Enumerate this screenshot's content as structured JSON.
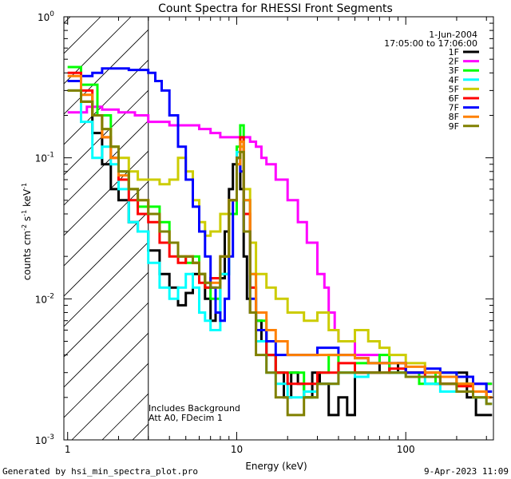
{
  "chart_data": {
    "type": "line",
    "title": "Count Spectra for RHESSI Front Segments",
    "xlabel": "Energy (keV)",
    "ylabel_main": "counts cm",
    "ylabel_exp1": "-2",
    "ylabel_mid": " s",
    "ylabel_exp2": "-1",
    "ylabel_end": " keV",
    "ylabel_exp3": "-1",
    "xscale": "log",
    "yscale": "log",
    "xlim": [
      0.95,
      330
    ],
    "ylim": [
      0.001,
      1.0
    ],
    "xticks": [
      {
        "v": 1,
        "label": "1"
      },
      {
        "v": 10,
        "label": "10"
      },
      {
        "v": 100,
        "label": "100"
      }
    ],
    "yticks": [
      {
        "v": 1.0,
        "base": "10",
        "exp": "0"
      },
      {
        "v": 0.1,
        "base": "10",
        "exp": "-1"
      },
      {
        "v": 0.01,
        "base": "10",
        "exp": "-2"
      },
      {
        "v": 0.001,
        "base": "10",
        "exp": "-3"
      }
    ],
    "attenuator_shading_below_kev": 3.0,
    "date": "1-Jun-2004",
    "time_range": "17:05:00 to 17:06:00",
    "annotations": [
      "Includes Background",
      "Att A0, FDecim 1"
    ],
    "series": [
      {
        "name": "1F",
        "color": "#000000",
        "x": [
          1.0,
          1.2,
          1.4,
          1.6,
          1.8,
          2.0,
          2.3,
          2.6,
          3.0,
          3.5,
          4.0,
          4.5,
          5.0,
          5.5,
          6.0,
          6.5,
          7.0,
          7.5,
          8.0,
          8.5,
          9.0,
          9.5,
          10.0,
          10.5,
          11.0,
          11.5,
          12.0,
          13,
          14,
          15,
          17,
          19,
          21,
          23,
          25,
          28,
          31,
          35,
          40,
          45,
          50,
          60,
          70,
          80,
          90,
          100,
          120,
          150,
          180,
          200,
          230,
          260,
          300
        ],
        "y": [
          0.35,
          0.25,
          0.15,
          0.09,
          0.06,
          0.05,
          0.035,
          0.03,
          0.022,
          0.015,
          0.012,
          0.009,
          0.011,
          0.015,
          0.015,
          0.01,
          0.007,
          0.008,
          0.014,
          0.03,
          0.06,
          0.09,
          0.1,
          0.06,
          0.02,
          0.01,
          0.008,
          0.007,
          0.005,
          0.004,
          0.003,
          0.002,
          0.003,
          0.0025,
          0.002,
          0.003,
          0.0025,
          0.0015,
          0.002,
          0.0015,
          0.003,
          0.003,
          0.0035,
          0.003,
          0.0035,
          0.003,
          0.003,
          0.0025,
          0.0025,
          0.003,
          0.002,
          0.0015,
          0.0015
        ]
      },
      {
        "name": "2F",
        "color": "#ff00ff",
        "x": [
          1.0,
          1.3,
          1.6,
          2.0,
          2.5,
          3.0,
          3.5,
          4.0,
          5.0,
          6.0,
          7.0,
          8.0,
          9.0,
          10.0,
          11.0,
          12.0,
          13.0,
          14.0,
          15.0,
          17.0,
          20.0,
          23.0,
          26.0,
          30.0,
          33.0,
          35.0,
          38.0,
          40.0,
          45.0,
          50.0,
          60.0,
          70.0,
          80.0,
          100.0,
          130.0,
          160.0,
          200.0,
          250.0,
          300.0
        ],
        "y": [
          0.21,
          0.23,
          0.22,
          0.21,
          0.2,
          0.18,
          0.18,
          0.17,
          0.17,
          0.16,
          0.15,
          0.14,
          0.14,
          0.14,
          0.14,
          0.13,
          0.12,
          0.1,
          0.09,
          0.07,
          0.05,
          0.035,
          0.025,
          0.015,
          0.012,
          0.008,
          0.006,
          0.005,
          0.005,
          0.004,
          0.004,
          0.0035,
          0.003,
          0.003,
          0.003,
          0.0028,
          0.0028,
          0.0025,
          0.0025
        ]
      },
      {
        "name": "3F",
        "color": "#00ff00",
        "x": [
          1.0,
          1.2,
          1.5,
          1.8,
          2.0,
          2.3,
          2.6,
          3.0,
          3.5,
          4.0,
          4.5,
          5.0,
          5.5,
          6.0,
          6.5,
          7.0,
          8.0,
          9.0,
          10.0,
          10.5,
          11.0,
          12.0,
          13,
          15,
          17,
          20,
          25,
          30,
          35,
          40,
          50,
          60,
          70,
          80,
          100,
          120,
          150,
          200,
          250,
          300
        ],
        "y": [
          0.44,
          0.33,
          0.2,
          0.12,
          0.08,
          0.06,
          0.045,
          0.045,
          0.035,
          0.025,
          0.02,
          0.018,
          0.02,
          0.015,
          0.012,
          0.01,
          0.015,
          0.04,
          0.12,
          0.17,
          0.05,
          0.015,
          0.007,
          0.004,
          0.003,
          0.003,
          0.002,
          0.003,
          0.004,
          0.003,
          0.0035,
          0.0035,
          0.004,
          0.003,
          0.003,
          0.0025,
          0.003,
          0.0025,
          0.002,
          0.0025
        ]
      },
      {
        "name": "4F",
        "color": "#00ffff",
        "x": [
          1.0,
          1.2,
          1.4,
          1.6,
          1.8,
          2.0,
          2.3,
          2.6,
          3.0,
          3.5,
          4.0,
          4.5,
          5.0,
          5.5,
          6.0,
          6.5,
          7.0,
          8.0,
          9.0,
          10.0,
          10.5,
          11.0,
          12.0,
          13,
          15,
          17,
          20,
          25,
          30,
          40,
          50,
          60,
          80,
          100,
          130,
          160,
          200,
          250,
          300
        ],
        "y": [
          0.3,
          0.18,
          0.1,
          0.12,
          0.09,
          0.06,
          0.035,
          0.03,
          0.018,
          0.012,
          0.01,
          0.012,
          0.015,
          0.012,
          0.008,
          0.007,
          0.006,
          0.015,
          0.05,
          0.11,
          0.13,
          0.05,
          0.012,
          0.005,
          0.003,
          0.0025,
          0.002,
          0.0022,
          0.0025,
          0.003,
          0.0028,
          0.003,
          0.003,
          0.0028,
          0.0025,
          0.0022,
          0.0022,
          0.002,
          0.0018
        ]
      },
      {
        "name": "5F",
        "color": "#cccc00",
        "x": [
          1.0,
          1.2,
          1.4,
          1.6,
          1.8,
          2.0,
          2.3,
          2.6,
          3.0,
          3.5,
          4.0,
          4.5,
          5.0,
          5.5,
          6.0,
          6.5,
          7.0,
          8.0,
          9.0,
          10.0,
          10.5,
          11.0,
          12.0,
          13,
          15,
          17,
          20,
          25,
          30,
          35,
          40,
          50,
          60,
          70,
          80,
          100,
          130,
          160,
          200,
          250,
          300
        ],
        "y": [
          0.3,
          0.25,
          0.2,
          0.16,
          0.12,
          0.1,
          0.08,
          0.07,
          0.07,
          0.065,
          0.07,
          0.1,
          0.08,
          0.05,
          0.035,
          0.028,
          0.03,
          0.04,
          0.05,
          0.09,
          0.12,
          0.06,
          0.025,
          0.015,
          0.012,
          0.01,
          0.008,
          0.007,
          0.008,
          0.006,
          0.005,
          0.006,
          0.005,
          0.0045,
          0.004,
          0.0035,
          0.003,
          0.003,
          0.0025,
          0.0022,
          0.002
        ]
      },
      {
        "name": "6F",
        "color": "#ff0000",
        "x": [
          1.0,
          1.2,
          1.4,
          1.6,
          1.8,
          2.0,
          2.3,
          2.6,
          3.0,
          3.5,
          4.0,
          4.5,
          5.0,
          5.5,
          6.0,
          6.5,
          7.0,
          8.0,
          9.0,
          10.0,
          10.5,
          11.0,
          12.0,
          13,
          15,
          17,
          20,
          25,
          30,
          40,
          50,
          60,
          80,
          100,
          130,
          160,
          200,
          250,
          300
        ],
        "y": [
          0.4,
          0.3,
          0.2,
          0.14,
          0.1,
          0.07,
          0.05,
          0.04,
          0.035,
          0.025,
          0.02,
          0.018,
          0.02,
          0.018,
          0.013,
          0.012,
          0.014,
          0.02,
          0.05,
          0.1,
          0.14,
          0.04,
          0.012,
          0.006,
          0.004,
          0.003,
          0.0025,
          0.0025,
          0.003,
          0.0035,
          0.003,
          0.003,
          0.0032,
          0.003,
          0.0028,
          0.0025,
          0.0024,
          0.0022,
          0.002
        ]
      },
      {
        "name": "7F",
        "color": "#0000ff",
        "x": [
          1.0,
          1.2,
          1.4,
          1.6,
          1.8,
          2.0,
          2.3,
          2.6,
          3.0,
          3.3,
          3.6,
          4.0,
          4.5,
          5.0,
          5.5,
          6.0,
          6.5,
          7.0,
          7.5,
          8.0,
          8.5,
          9.0,
          9.5,
          10.0,
          10.5,
          11.0,
          12.0,
          13,
          15,
          17,
          20,
          25,
          30,
          40,
          50,
          60,
          80,
          100,
          130,
          160,
          200,
          250,
          300
        ],
        "y": [
          0.35,
          0.38,
          0.4,
          0.43,
          0.43,
          0.43,
          0.42,
          0.42,
          0.4,
          0.35,
          0.3,
          0.2,
          0.12,
          0.07,
          0.045,
          0.03,
          0.02,
          0.012,
          0.008,
          0.007,
          0.01,
          0.02,
          0.05,
          0.1,
          0.08,
          0.03,
          0.01,
          0.006,
          0.005,
          0.004,
          0.004,
          0.004,
          0.0045,
          0.004,
          0.0038,
          0.0035,
          0.0035,
          0.003,
          0.0032,
          0.003,
          0.0028,
          0.0025,
          0.0022
        ]
      },
      {
        "name": "8F",
        "color": "#ff8000",
        "x": [
          1.0,
          1.2,
          1.4,
          1.6,
          1.8,
          2.0,
          2.3,
          2.6,
          3.0,
          3.5,
          4.0,
          4.5,
          5.0,
          5.5,
          6.0,
          6.5,
          7.0,
          8.0,
          9.0,
          10.0,
          10.5,
          11.0,
          12.0,
          13,
          15,
          17,
          20,
          25,
          30,
          40,
          50,
          60,
          80,
          100,
          130,
          160,
          200,
          250,
          300
        ],
        "y": [
          0.38,
          0.28,
          0.2,
          0.14,
          0.1,
          0.075,
          0.06,
          0.05,
          0.04,
          0.03,
          0.025,
          0.02,
          0.02,
          0.018,
          0.015,
          0.013,
          0.013,
          0.02,
          0.05,
          0.09,
          0.13,
          0.05,
          0.015,
          0.008,
          0.006,
          0.005,
          0.004,
          0.004,
          0.004,
          0.004,
          0.0038,
          0.0035,
          0.0035,
          0.0033,
          0.003,
          0.0028,
          0.0025,
          0.0022,
          0.002
        ]
      },
      {
        "name": "9F",
        "color": "#808000",
        "x": [
          1.0,
          1.2,
          1.4,
          1.6,
          1.8,
          2.0,
          2.3,
          2.6,
          3.0,
          3.5,
          4.0,
          4.5,
          5.0,
          5.5,
          6.0,
          6.5,
          7.0,
          8.0,
          9.0,
          10.0,
          10.5,
          11.0,
          12.0,
          13,
          15,
          17,
          20,
          25,
          30,
          40,
          50,
          60,
          80,
          100,
          130,
          160,
          200,
          250,
          300
        ],
        "y": [
          0.3,
          0.25,
          0.2,
          0.16,
          0.12,
          0.08,
          0.06,
          0.05,
          0.04,
          0.03,
          0.025,
          0.02,
          0.02,
          0.018,
          0.015,
          0.013,
          0.012,
          0.02,
          0.05,
          0.1,
          0.11,
          0.03,
          0.008,
          0.004,
          0.003,
          0.002,
          0.0015,
          0.002,
          0.0025,
          0.003,
          0.003,
          0.003,
          0.003,
          0.0028,
          0.0028,
          0.0025,
          0.0022,
          0.002,
          0.0018
        ]
      }
    ]
  },
  "footer": {
    "left": "Generated by hsi_min_spectra_plot.pro",
    "right": "9-Apr-2023 11:09"
  }
}
